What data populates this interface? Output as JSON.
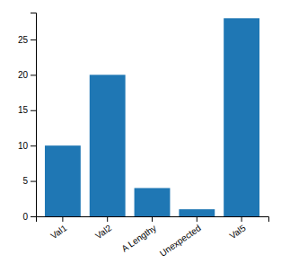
{
  "chart_data": {
    "type": "bar",
    "categories": [
      "Val1",
      "Val2",
      "A Lengthy",
      "Unexpected",
      "Val5"
    ],
    "values": [
      10,
      20,
      4,
      1,
      28
    ],
    "color": "#1f77b4",
    "ylim": [
      0,
      28.8
    ],
    "yticks": [
      0,
      5,
      10,
      15,
      20,
      25
    ],
    "grid": false
  }
}
